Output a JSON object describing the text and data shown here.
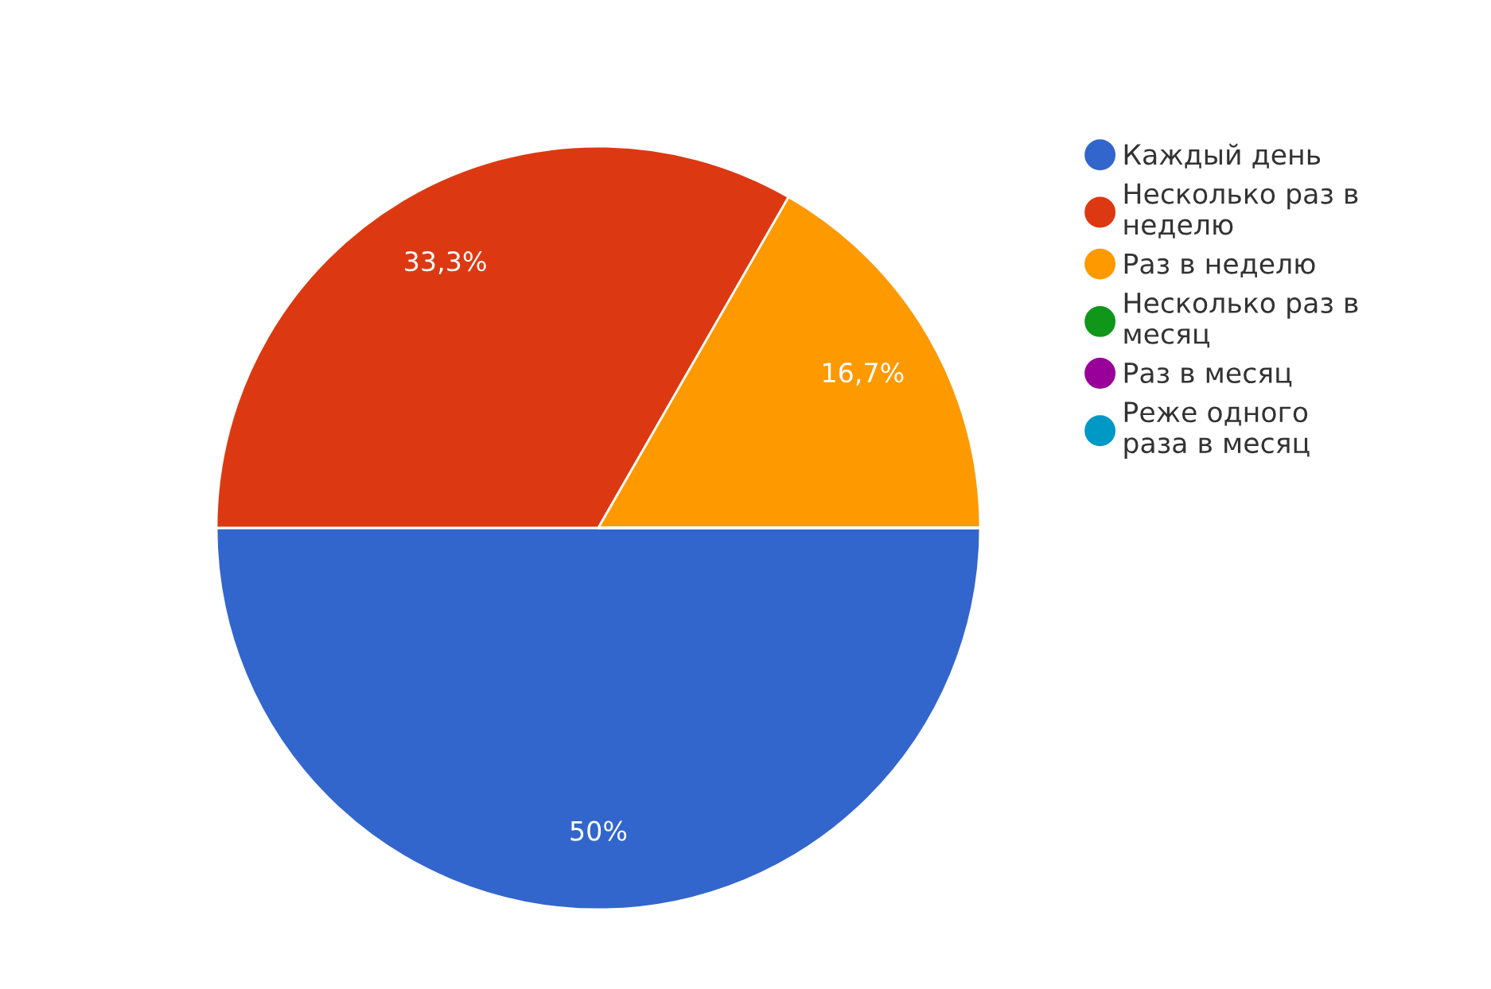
{
  "chart_data": {
    "type": "pie",
    "categories": [
      "Каждый день",
      "Несколько раз в неделю",
      "Раз в неделю",
      "Несколько раз в месяц",
      "Раз в месяц",
      "Реже одного раза в месяц"
    ],
    "values": [
      50,
      33.3,
      16.7,
      0,
      0,
      0
    ],
    "value_labels": [
      "50%",
      "33,3%",
      "16,7%",
      null,
      null,
      null
    ],
    "colors": [
      "#3366cc",
      "#dc3912",
      "#ff9900",
      "#109618",
      "#990099",
      "#0099c6"
    ],
    "legend": "right"
  }
}
